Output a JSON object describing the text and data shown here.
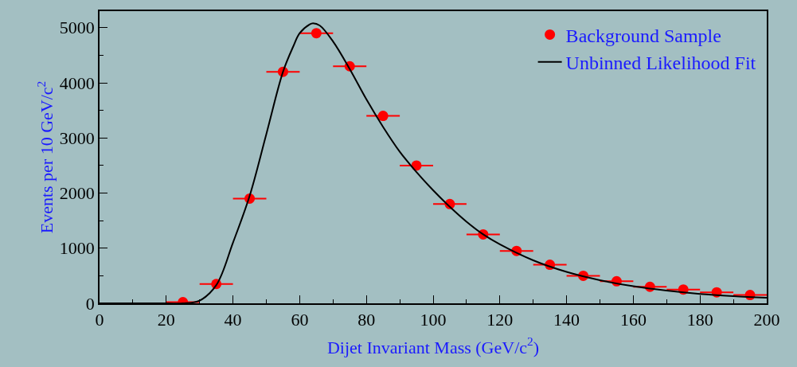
{
  "chart_data": {
    "type": "scatter",
    "xlabel": "Dijet Invariant Mass (GeV/c$^{2}$)",
    "ylabel": "Events per 10 GeV/c$^{2}$",
    "xlim": [
      0,
      200
    ],
    "xticks": [
      0,
      20,
      40,
      60,
      80,
      100,
      120,
      140,
      160,
      180,
      200
    ],
    "ylim": [
      0,
      5300
    ],
    "yticks": [
      0,
      1000,
      2000,
      3000,
      4000,
      5000
    ],
    "grid": false,
    "legend": "top right",
    "series": [
      {
        "name": "Background Sample",
        "color": "#ff0000",
        "marker": "circle",
        "x": [
          25,
          35,
          45,
          55,
          65,
          75,
          85,
          95,
          105,
          115,
          125,
          135,
          145,
          155,
          165,
          175,
          185,
          195
        ],
        "values": [
          20,
          350,
          1900,
          4200,
          4900,
          4300,
          3400,
          2500,
          1800,
          1250,
          950,
          700,
          500,
          400,
          300,
          250,
          200,
          150
        ],
        "xerrors": [
          5,
          5,
          5,
          5,
          5,
          5,
          5,
          5,
          5,
          5,
          5,
          5,
          5,
          5,
          5,
          5,
          5,
          5
        ]
      },
      {
        "name": "Unbinned Likelihood Fit",
        "type": "line",
        "color": "#000000",
        "marker": "none",
        "line_style": "solid",
        "x": [
          0,
          20,
          25,
          30,
          35,
          40,
          45,
          50,
          55,
          58,
          60,
          63,
          64,
          66,
          70,
          75,
          80,
          85,
          90,
          95,
          100,
          105,
          110,
          115,
          120,
          130,
          140,
          150,
          160,
          170,
          180,
          190,
          200
        ],
        "values": [
          0,
          0,
          0,
          50,
          330,
          1100,
          1950,
          3070,
          4200,
          4650,
          4900,
          5060,
          5080,
          5040,
          4750,
          4250,
          3700,
          3200,
          2750,
          2380,
          2050,
          1750,
          1480,
          1250,
          1070,
          780,
          570,
          420,
          310,
          230,
          170,
          130,
          100
        ]
      }
    ]
  }
}
